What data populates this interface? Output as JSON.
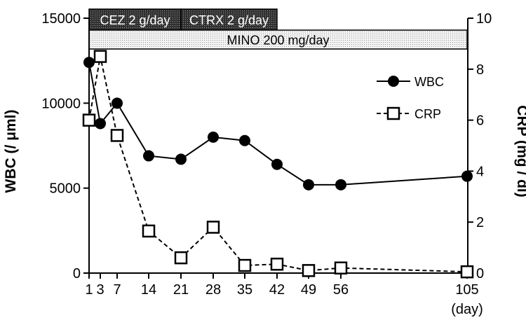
{
  "chart_data": {
    "type": "line",
    "xlabel": "",
    "x_unit": "(day)",
    "x_ticks": [
      "1",
      "3",
      "7",
      "14",
      "21",
      "28",
      "35",
      "42",
      "49",
      "56",
      "105"
    ],
    "ylabel_left": "WBC (/ μml)",
    "ylabel_right": "CRP (mg / dl)",
    "ylim_left": [
      0,
      15000
    ],
    "ylim_right": [
      0,
      10
    ],
    "yticks_left": [
      "0",
      "5000",
      "10000",
      "15000"
    ],
    "yticks_right": [
      "0",
      "2",
      "4",
      "6",
      "8",
      "10"
    ],
    "treatments": [
      {
        "label": "CEZ 2 g/day",
        "start_day": 1,
        "end_day": 21,
        "pattern": "dense"
      },
      {
        "label": "CTRX 2 g/day",
        "start_day": 21,
        "end_day": 42,
        "pattern": "dense"
      },
      {
        "label": "MINO 200 mg/day",
        "start_day": 1,
        "end_day": 105,
        "pattern": "dotted"
      }
    ],
    "legend_position": "top-right",
    "series": [
      {
        "name": "WBC",
        "axis": "left",
        "marker": "filled-circle",
        "line": "solid",
        "x": [
          1,
          3,
          7,
          14,
          21,
          28,
          35,
          42,
          49,
          56,
          105
        ],
        "values": [
          12400,
          8800,
          10000,
          6900,
          6700,
          8000,
          7800,
          6400,
          5200,
          5200,
          5700
        ]
      },
      {
        "name": "CRP",
        "axis": "right",
        "marker": "open-square",
        "line": "dashed",
        "x": [
          1,
          3,
          7,
          14,
          21,
          28,
          35,
          42,
          49,
          56,
          105
        ],
        "values": [
          6.0,
          8.5,
          5.4,
          1.65,
          0.6,
          1.8,
          0.3,
          0.35,
          0.1,
          0.2,
          0.05
        ]
      }
    ]
  },
  "colors": {
    "ink": "#000000",
    "marker_fill_open": "#ffffff"
  }
}
